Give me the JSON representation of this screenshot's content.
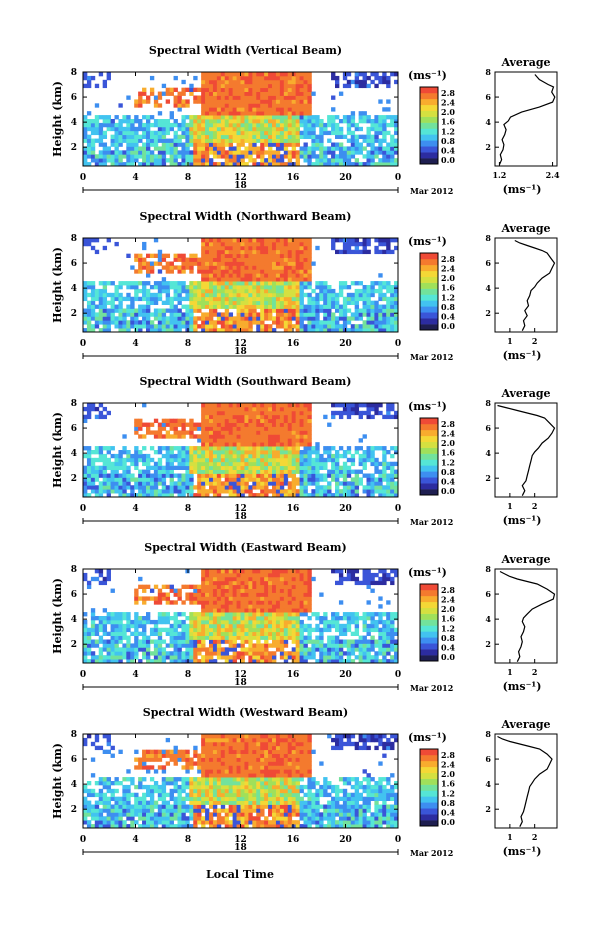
{
  "figure": {
    "bottom_xlabel": "Local Time",
    "day_label": "18",
    "month_label": "Mar 2012",
    "unit_label": "(ms⁻¹)",
    "avg_title": "Average",
    "colormap": [
      "#1e1e50",
      "#2c2ca0",
      "#3a55d8",
      "#3d8ef0",
      "#42c3f0",
      "#55e6d6",
      "#72e29c",
      "#a0e05a",
      "#d5e040",
      "#f4d836",
      "#f8ac2e",
      "#f47a2e",
      "#ef4a36"
    ]
  },
  "chart_data": [
    {
      "type": "heatmap",
      "title": "Spectral Width (Vertical Beam)",
      "ylabel": "Height (km)",
      "x_ticks": [
        "0",
        "4",
        "8",
        "12",
        "16",
        "20",
        "0"
      ],
      "xlim": [
        0,
        24
      ],
      "y_ticks": [
        "2",
        "4",
        "6",
        "8"
      ],
      "ylim": [
        0.5,
        8
      ],
      "colorbar": {
        "ticks": [
          "0.0",
          "0.4",
          "0.8",
          "1.2",
          "1.6",
          "2.0",
          "2.4",
          "2.8"
        ],
        "range": [
          0,
          3
        ]
      },
      "average_profile": {
        "x_ticks": [
          "1.2",
          "2.4"
        ],
        "xlim": [
          1.1,
          2.5
        ],
        "y_ticks": [
          "2",
          "4",
          "6",
          "8"
        ],
        "ylim": [
          0.5,
          8
        ],
        "x": [
          1.2,
          1.25,
          1.22,
          1.28,
          1.3,
          1.26,
          1.32,
          1.35,
          1.3,
          1.4,
          1.45,
          1.7,
          2.1,
          2.4,
          2.45,
          2.38,
          2.42,
          2.3,
          2.2,
          2.1,
          2.05,
          2.0
        ],
        "y": [
          0.6,
          1.0,
          1.4,
          1.8,
          2.2,
          2.6,
          3.0,
          3.4,
          3.8,
          4.1,
          4.4,
          4.8,
          5.2,
          5.6,
          6.0,
          6.4,
          6.8,
          7.0,
          7.2,
          7.4,
          7.6,
          7.8
        ]
      }
    },
    {
      "type": "heatmap",
      "title": "Spectral Width (Northward Beam)",
      "ylabel": "Height (km)",
      "x_ticks": [
        "0",
        "4",
        "8",
        "12",
        "16",
        "20",
        "0"
      ],
      "xlim": [
        0,
        24
      ],
      "y_ticks": [
        "2",
        "4",
        "6",
        "8"
      ],
      "ylim": [
        0.5,
        8
      ],
      "colorbar": {
        "ticks": [
          "0.0",
          "0.4",
          "0.8",
          "1.2",
          "1.6",
          "2.0",
          "2.4",
          "2.8"
        ],
        "range": [
          0,
          3
        ]
      },
      "average_profile": {
        "x_ticks": [
          "1",
          "2"
        ],
        "xlim": [
          0.4,
          2.9
        ],
        "y_ticks": [
          "2",
          "4",
          "6",
          "8"
        ],
        "ylim": [
          0.5,
          8
        ],
        "x": [
          1.5,
          1.6,
          1.55,
          1.7,
          1.6,
          1.75,
          1.7,
          1.8,
          1.85,
          2.0,
          2.1,
          2.3,
          2.6,
          2.7,
          2.8,
          2.65,
          2.5,
          2.3,
          2.0,
          1.7,
          1.4,
          1.2
        ],
        "y": [
          0.6,
          1.0,
          1.4,
          1.8,
          2.2,
          2.6,
          3.0,
          3.4,
          3.8,
          4.1,
          4.4,
          4.8,
          5.2,
          5.6,
          6.0,
          6.4,
          6.8,
          7.0,
          7.2,
          7.4,
          7.6,
          7.8
        ]
      }
    },
    {
      "type": "heatmap",
      "title": "Spectral Width (Southward Beam)",
      "ylabel": "Height (km)",
      "x_ticks": [
        "0",
        "4",
        "8",
        "12",
        "16",
        "20",
        "0"
      ],
      "xlim": [
        0,
        24
      ],
      "y_ticks": [
        "2",
        "4",
        "6",
        "8"
      ],
      "ylim": [
        0.5,
        8
      ],
      "colorbar": {
        "ticks": [
          "0.0",
          "0.4",
          "0.8",
          "1.2",
          "1.6",
          "2.0",
          "2.4",
          "2.8"
        ],
        "range": [
          0,
          3
        ]
      },
      "average_profile": {
        "x_ticks": [
          "1",
          "2"
        ],
        "xlim": [
          0.4,
          2.9
        ],
        "y_ticks": [
          "2",
          "4",
          "6",
          "8"
        ],
        "ylim": [
          0.5,
          8
        ],
        "x": [
          1.5,
          1.6,
          1.5,
          1.65,
          1.7,
          1.75,
          1.8,
          1.85,
          1.9,
          2.0,
          2.15,
          2.3,
          2.55,
          2.7,
          2.8,
          2.6,
          2.4,
          2.1,
          1.7,
          1.3,
          0.9,
          0.5
        ],
        "y": [
          0.6,
          1.0,
          1.4,
          1.8,
          2.2,
          2.6,
          3.0,
          3.4,
          3.8,
          4.1,
          4.4,
          4.8,
          5.2,
          5.6,
          6.0,
          6.4,
          6.8,
          7.0,
          7.2,
          7.4,
          7.6,
          7.8
        ]
      }
    },
    {
      "type": "heatmap",
      "title": "Spectral Width (Eastward Beam)",
      "ylabel": "Height (km)",
      "x_ticks": [
        "0",
        "4",
        "8",
        "12",
        "16",
        "20",
        "0"
      ],
      "xlim": [
        0,
        24
      ],
      "y_ticks": [
        "2",
        "4",
        "6",
        "8"
      ],
      "ylim": [
        0.5,
        8
      ],
      "colorbar": {
        "ticks": [
          "0.0",
          "0.4",
          "0.8",
          "1.2",
          "1.6",
          "2.0",
          "2.4",
          "2.8"
        ],
        "range": [
          0,
          3
        ]
      },
      "average_profile": {
        "x_ticks": [
          "1",
          "2"
        ],
        "xlim": [
          0.4,
          2.9
        ],
        "y_ticks": [
          "2",
          "4",
          "6",
          "8"
        ],
        "ylim": [
          0.5,
          8
        ],
        "x": [
          1.3,
          1.4,
          1.35,
          1.45,
          1.5,
          1.45,
          1.55,
          1.6,
          1.5,
          1.55,
          1.7,
          1.9,
          2.3,
          2.75,
          2.8,
          2.5,
          2.1,
          1.7,
          1.3,
          1.0,
          0.8,
          0.6
        ],
        "y": [
          0.6,
          1.0,
          1.4,
          1.8,
          2.2,
          2.6,
          3.0,
          3.4,
          3.8,
          4.1,
          4.4,
          4.8,
          5.2,
          5.6,
          6.0,
          6.4,
          6.8,
          7.0,
          7.2,
          7.4,
          7.6,
          7.8
        ]
      }
    },
    {
      "type": "heatmap",
      "title": "Spectral Width (Westward Beam)",
      "ylabel": "Height (km)",
      "x_ticks": [
        "0",
        "4",
        "8",
        "12",
        "16",
        "20",
        "0"
      ],
      "xlim": [
        0,
        24
      ],
      "y_ticks": [
        "2",
        "4",
        "6",
        "8"
      ],
      "ylim": [
        0.5,
        8
      ],
      "colorbar": {
        "ticks": [
          "0.0",
          "0.4",
          "0.8",
          "1.2",
          "1.6",
          "2.0",
          "2.4",
          "2.8"
        ],
        "range": [
          0,
          3
        ]
      },
      "average_profile": {
        "x_ticks": [
          "1",
          "2"
        ],
        "xlim": [
          0.4,
          2.9
        ],
        "y_ticks": [
          "2",
          "4",
          "6",
          "8"
        ],
        "ylim": [
          0.5,
          8
        ],
        "x": [
          1.4,
          1.5,
          1.45,
          1.55,
          1.6,
          1.65,
          1.7,
          1.75,
          1.8,
          1.9,
          2.0,
          2.2,
          2.5,
          2.6,
          2.7,
          2.5,
          2.2,
          1.8,
          1.4,
          1.0,
          0.7,
          0.5
        ],
        "y": [
          0.6,
          1.0,
          1.4,
          1.8,
          2.2,
          2.6,
          3.0,
          3.4,
          3.8,
          4.1,
          4.4,
          4.8,
          5.2,
          5.6,
          6.0,
          6.4,
          6.8,
          7.0,
          7.2,
          7.4,
          7.6,
          7.8
        ]
      }
    }
  ]
}
